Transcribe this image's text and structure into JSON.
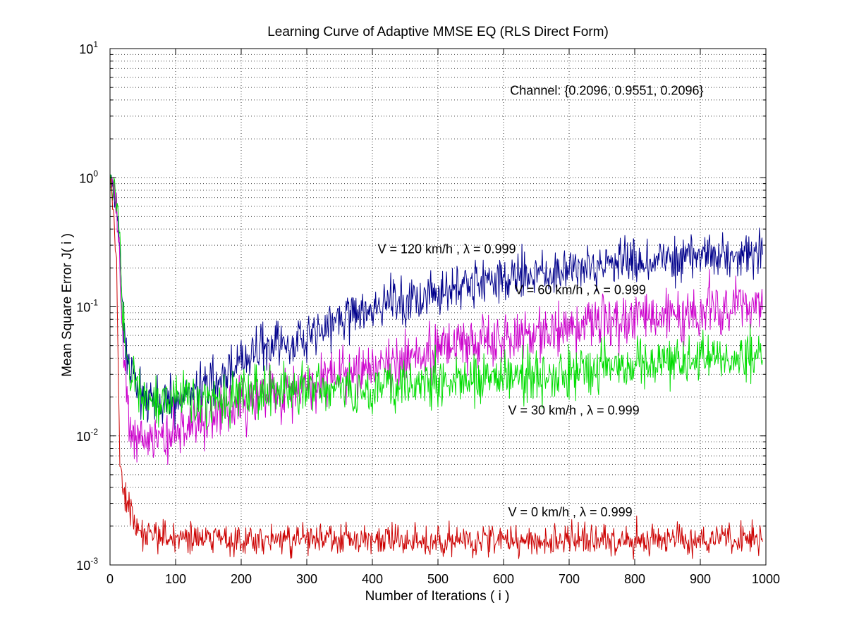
{
  "chart_data": {
    "type": "line",
    "title": "Learning Curve of Adaptive MMSE EQ (RLS Direct Form)",
    "xlabel": "Number of Iterations ( i )",
    "ylabel": "Mean Square Error  J( i )",
    "xlim": [
      0,
      1000
    ],
    "ylim": [
      0.001,
      10
    ],
    "yscale": "log",
    "grid": true,
    "x_ticks": [
      0,
      100,
      200,
      300,
      400,
      500,
      600,
      700,
      800,
      900,
      1000
    ],
    "x_tick_labels": [
      "0",
      "100",
      "200",
      "300",
      "400",
      "500",
      "600",
      "700",
      "800",
      "900",
      "1000"
    ],
    "y_ticks": [
      {
        "value": 0.001,
        "base": "10",
        "exp": "-3"
      },
      {
        "value": 0.01,
        "base": "10",
        "exp": "-2"
      },
      {
        "value": 0.1,
        "base": "10",
        "exp": "-1"
      },
      {
        "value": 1,
        "base": "10",
        "exp": "0"
      },
      {
        "value": 10,
        "base": "10",
        "exp": "1"
      }
    ],
    "x_samples": [
      0,
      5,
      10,
      15,
      20,
      25,
      30,
      40,
      50,
      60,
      70,
      80,
      100,
      150,
      200,
      250,
      300,
      350,
      400,
      450,
      500,
      550,
      600,
      650,
      700,
      750,
      800,
      850,
      900,
      950,
      995
    ],
    "series": [
      {
        "name": "V = 120 km/h",
        "color": "#00008b",
        "noise": 0.09,
        "values": [
          1.0,
          0.8,
          0.6,
          0.3,
          0.08,
          0.04,
          0.03,
          0.025,
          0.02,
          0.018,
          0.017,
          0.017,
          0.019,
          0.025,
          0.038,
          0.05,
          0.062,
          0.078,
          0.095,
          0.115,
          0.13,
          0.15,
          0.165,
          0.18,
          0.195,
          0.21,
          0.225,
          0.235,
          0.24,
          0.245,
          0.245
        ]
      },
      {
        "name": "V = 60 km/h",
        "color": "#cc00cc",
        "noise": 0.1,
        "values": [
          1.0,
          0.85,
          0.6,
          0.2,
          0.05,
          0.02,
          0.012,
          0.01,
          0.009,
          0.009,
          0.0095,
          0.01,
          0.011,
          0.014,
          0.018,
          0.021,
          0.025,
          0.029,
          0.034,
          0.04,
          0.046,
          0.051,
          0.057,
          0.063,
          0.069,
          0.075,
          0.082,
          0.088,
          0.094,
          0.1,
          0.104
        ]
      },
      {
        "name": "V = 30 km/h",
        "color": "#00dd00",
        "noise": 0.1,
        "values": [
          1.0,
          0.9,
          0.7,
          0.3,
          0.08,
          0.04,
          0.03,
          0.025,
          0.021,
          0.02,
          0.019,
          0.019,
          0.02,
          0.02,
          0.021,
          0.022,
          0.022,
          0.023,
          0.024,
          0.025,
          0.026,
          0.027,
          0.029,
          0.03,
          0.032,
          0.034,
          0.036,
          0.038,
          0.04,
          0.042,
          0.044
        ]
      },
      {
        "name": "V = 0 km/h",
        "color": "#cc0000",
        "noise": 0.06,
        "values": [
          1.0,
          0.6,
          0.2,
          0.006,
          0.004,
          0.003,
          0.0026,
          0.0021,
          0.0019,
          0.0018,
          0.0017,
          0.00165,
          0.0016,
          0.0016,
          0.0016,
          0.0016,
          0.0016,
          0.00158,
          0.00158,
          0.00157,
          0.00157,
          0.00156,
          0.00156,
          0.00155,
          0.00155,
          0.00155,
          0.00155,
          0.00155,
          0.00155,
          0.00155,
          0.00155
        ]
      }
    ],
    "annotations": [
      {
        "name": "annotation-channel",
        "text": "Channel: {0.2096, 0.9551, 0.2096}",
        "x": 610,
        "y": 4.4,
        "lambda": null
      },
      {
        "name": "annotation-v120",
        "text": "V = 120 km/h , ",
        "x": 408,
        "y": 0.26,
        "lambda": "λ = 0.999"
      },
      {
        "name": "annotation-v60",
        "text": "V = 60 km/h , ",
        "x": 617,
        "y": 0.125,
        "lambda": "λ = 0.999"
      },
      {
        "name": "annotation-v30",
        "text": "V = 30 km/h , ",
        "x": 607,
        "y": 0.0146,
        "lambda": "λ = 0.999"
      },
      {
        "name": "annotation-v0",
        "text": "V = 0 km/h , ",
        "x": 607,
        "y": 0.00238,
        "lambda": "λ = 0.999"
      }
    ]
  }
}
